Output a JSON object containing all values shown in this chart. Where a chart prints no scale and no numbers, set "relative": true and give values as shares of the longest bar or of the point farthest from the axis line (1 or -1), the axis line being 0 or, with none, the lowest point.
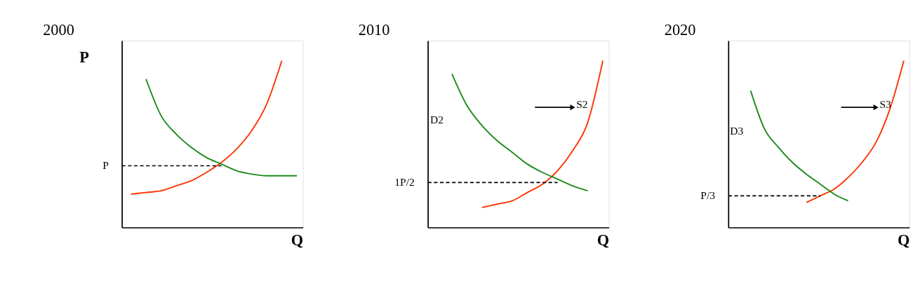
{
  "chart_data": [
    {
      "type": "line",
      "relative": true,
      "title": "2000",
      "ylabel": "P",
      "xlabel": "Q",
      "categories": [
        null,
        null,
        null,
        null,
        null,
        null,
        null,
        null,
        null,
        null,
        null,
        null
      ],
      "series": [
        {
          "color": "#ff3300",
          "values": [
            0.2,
            0.21,
            0.22,
            0.25,
            0.28,
            0.33,
            0.39,
            0.47,
            0.58,
            0.74,
            1,
            null
          ]
        },
        {
          "color": "#1a8a1a",
          "values": [
            null,
            0.89,
            0.67,
            0.56,
            0.48,
            0.42,
            0.38,
            0.34,
            0.32,
            0.31,
            0.31,
            0.31
          ]
        }
      ],
      "ref_lines": [
        {
          "axis": "y",
          "value": 0.37,
          "label": "P",
          "color": "#000000",
          "line_style": "dashed"
        }
      ],
      "tick_labels": false,
      "marker": "none",
      "line_style": "solid"
    },
    {
      "type": "line",
      "relative": true,
      "title": "2010",
      "xlabel": "Q",
      "categories": [
        null,
        null,
        null,
        null,
        null,
        null,
        null,
        null,
        null,
        null,
        null,
        null
      ],
      "series": [
        {
          "color": "#ff3300",
          "values": [
            null,
            null,
            null,
            0.12,
            0.14,
            0.16,
            0.21,
            0.26,
            0.34,
            0.46,
            0.63,
            1
          ]
        },
        {
          "color": "#1a8a1a",
          "values": [
            null,
            0.92,
            0.73,
            0.61,
            0.52,
            0.45,
            0.38,
            0.33,
            0.29,
            0.25,
            0.22,
            null
          ]
        }
      ],
      "ref_lines": [
        {
          "axis": "y",
          "value": 0.27,
          "label": "1P/2",
          "color": "#000000",
          "line_style": "dashed"
        }
      ],
      "annotations": [
        "D2",
        "S2"
      ],
      "tick_labels": false,
      "marker": "none",
      "line_style": "solid"
    },
    {
      "type": "line",
      "relative": true,
      "title": "2020",
      "xlabel": "Q",
      "categories": [
        null,
        null,
        null,
        null,
        null,
        null,
        null,
        null,
        null,
        null,
        null,
        null,
        null
      ],
      "series": [
        {
          "color": "#ff3300",
          "values": [
            null,
            null,
            null,
            null,
            null,
            0.15,
            0.19,
            0.23,
            0.3,
            0.39,
            0.51,
            0.71,
            1
          ]
        },
        {
          "color": "#1a8a1a",
          "values": [
            null,
            0.82,
            0.59,
            0.48,
            0.39,
            0.32,
            0.26,
            0.2,
            0.16,
            null,
            null,
            null,
            null
          ]
        }
      ],
      "ref_lines": [
        {
          "axis": "y",
          "value": 0.19,
          "label": "P/3",
          "color": "#000000",
          "line_style": "dashed"
        }
      ],
      "annotations": [
        "D3",
        "S3"
      ],
      "tick_labels": false,
      "marker": "none",
      "line_style": "solid"
    }
  ]
}
